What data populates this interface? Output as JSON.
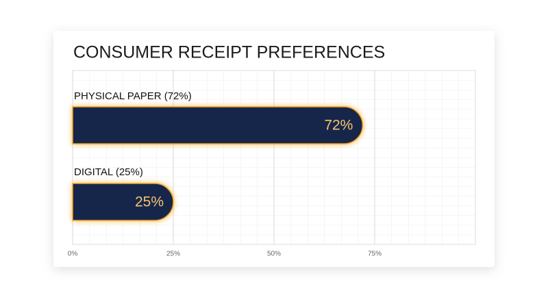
{
  "chart_data": {
    "type": "bar",
    "orientation": "horizontal",
    "title": "CONSUMER RECEIPT PREFERENCES",
    "categories": [
      "PHYSICAL PAPER (72%)",
      "DIGITAL (25%)"
    ],
    "values": [
      72,
      25
    ],
    "value_labels": [
      "72%",
      "25%"
    ],
    "color": "#14284b",
    "glow_color": "#f5a623",
    "xlim": [
      0,
      100
    ],
    "xticks": [
      {
        "value": 0,
        "label": "0%"
      },
      {
        "value": 25,
        "label": "25%"
      },
      {
        "value": 50,
        "label": "50%"
      },
      {
        "value": 75,
        "label": "75%"
      }
    ],
    "grid": true
  }
}
